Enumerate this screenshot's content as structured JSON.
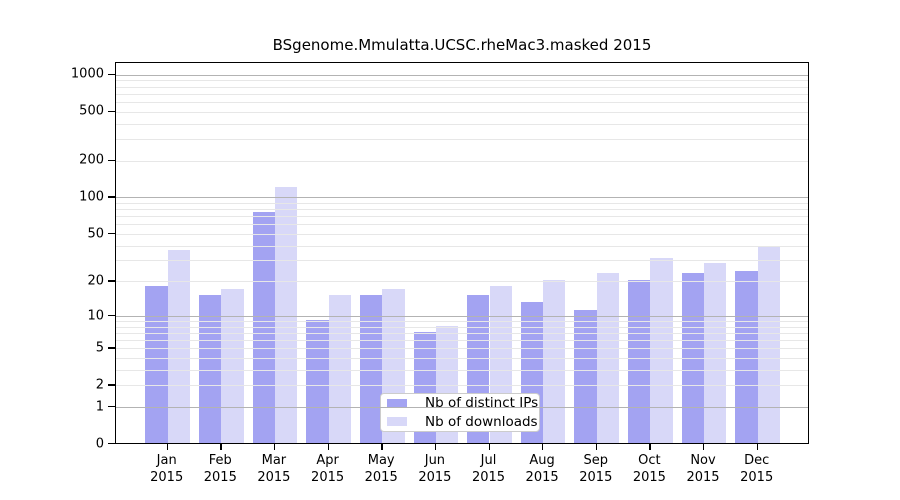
{
  "chart_data": {
    "type": "bar",
    "title": "BSgenome.Mmulatta.UCSC.rheMac3.masked 2015",
    "categories": [
      "Jan 2015",
      "Feb 2015",
      "Mar 2015",
      "Apr 2015",
      "May 2015",
      "Jun 2015",
      "Jul 2015",
      "Aug 2015",
      "Sep 2015",
      "Oct 2015",
      "Nov 2015",
      "Dec 2015"
    ],
    "series": [
      {
        "name": "Nb of distinct IPs",
        "color": "#a3a3f2",
        "values": [
          18,
          15,
          74,
          9,
          15,
          7,
          15,
          13,
          11,
          20,
          23,
          24
        ]
      },
      {
        "name": "Nb of downloads",
        "color": "#d8d8f8",
        "values": [
          36,
          17,
          120,
          15,
          17,
          8,
          18,
          20,
          23,
          31,
          28,
          38
        ]
      }
    ],
    "xlabel": "",
    "ylabel": "",
    "yscale": "log1p",
    "yticks": [
      0,
      1,
      2,
      5,
      10,
      20,
      50,
      100,
      200,
      500,
      1000
    ],
    "ylim": [
      0,
      1230
    ],
    "grid": "on",
    "major_gridline_values": [
      1,
      10,
      100,
      1000
    ],
    "minor_gridline_values": [
      2,
      3,
      4,
      5,
      6,
      7,
      8,
      9,
      20,
      30,
      40,
      50,
      60,
      70,
      80,
      90,
      200,
      300,
      400,
      500,
      600,
      700,
      800,
      900
    ],
    "legend_position": "bottom-center",
    "colors": {
      "axis": "#000000",
      "major_grid": "#b3b3b3",
      "minor_grid": "#e7e7e7",
      "legend_border": "#cccccc",
      "background": "#ffffff"
    }
  }
}
